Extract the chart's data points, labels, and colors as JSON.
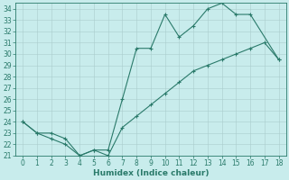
{
  "xlabel": "Humidex (Indice chaleur)",
  "upper_x": [
    0,
    1,
    2,
    3,
    4,
    5,
    6,
    7,
    8,
    9,
    10,
    11,
    12,
    13,
    14,
    15,
    16,
    18
  ],
  "upper_y": [
    24,
    23,
    23,
    22.5,
    21,
    21.5,
    21.5,
    26,
    30.5,
    30.5,
    33.5,
    31.5,
    32.5,
    34,
    34.5,
    33.5,
    33.5,
    29.5
  ],
  "lower_x": [
    0,
    1,
    2,
    3,
    4,
    5,
    6,
    7,
    8,
    9,
    10,
    11,
    12,
    13,
    14,
    15,
    16,
    17,
    18
  ],
  "lower_y": [
    24,
    23,
    22.5,
    22,
    21,
    21.5,
    21,
    23.5,
    24.5,
    25.5,
    26.5,
    27.5,
    28.5,
    29,
    29.5,
    30,
    30.5,
    31,
    29.5
  ],
  "color": "#2a7a6a",
  "bg_color": "#c8ecec",
  "ylim_min": 21,
  "ylim_max": 34.5,
  "xlim_min": -0.5,
  "xlim_max": 18.5,
  "yticks": [
    21,
    22,
    23,
    24,
    25,
    26,
    27,
    28,
    29,
    30,
    31,
    32,
    33,
    34
  ],
  "xticks": [
    0,
    1,
    2,
    3,
    4,
    5,
    6,
    7,
    8,
    9,
    10,
    11,
    12,
    13,
    14,
    15,
    16,
    17,
    18
  ],
  "grid_color": "#aacccc",
  "tick_fontsize": 5.5,
  "xlabel_fontsize": 6.5,
  "linewidth": 0.8,
  "markersize": 3.5
}
